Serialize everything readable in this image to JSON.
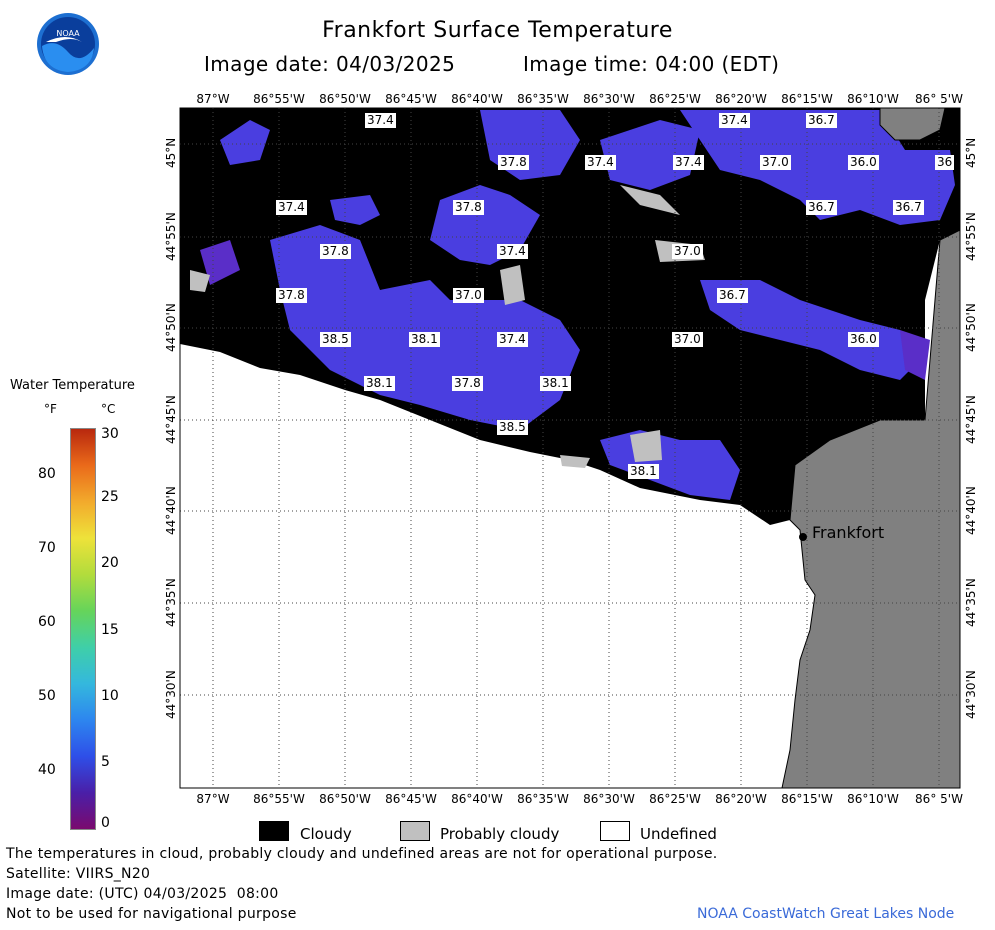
{
  "header": {
    "title": "Frankfort Surface Temperature",
    "image_date": "Image date: 04/03/2025",
    "image_time": "Image time: 04:00 (EDT)"
  },
  "logo": {
    "text": "NOAA"
  },
  "lon_labels": [
    "87°W",
    "86°55'W",
    "86°50'W",
    "86°45'W",
    "86°40'W",
    "86°35'W",
    "86°30'W",
    "86°25'W",
    "86°20'W",
    "86°15'W",
    "86°10'W",
    "86° 5'W"
  ],
  "lat_labels": [
    "45°N",
    "44°55'N",
    "44°50'N",
    "44°45'N",
    "44°40'N",
    "44°35'N",
    "44°30'N"
  ],
  "temps": [
    "37.4",
    "37.4",
    "36.7",
    "37.8",
    "37.4",
    "37.4",
    "37.0",
    "36.0",
    "36",
    "37.4",
    "37.8",
    "36.7",
    "36.7",
    "37.8",
    "37.4",
    "37.0",
    "37.8",
    "37.0",
    "36.7",
    "38.5",
    "38.1",
    "37.4",
    "37.0",
    "36.0",
    "38.1",
    "37.8",
    "38.1",
    "38.5",
    "38.1"
  ],
  "city": "Frankfort",
  "colorbar": {
    "title": "Water Temperature",
    "unit_f": "°F",
    "unit_c": "°C",
    "f_ticks": [
      "80",
      "70",
      "60",
      "50",
      "40"
    ],
    "c_ticks": [
      "30",
      "25",
      "20",
      "15",
      "10",
      "5",
      "0"
    ],
    "colors": [
      "#7a0a6e",
      "#4a1fa8",
      "#2e4fe8",
      "#2d86ef",
      "#34b8dd",
      "#3fcfa8",
      "#66d45a",
      "#b2dc3c",
      "#eee23a",
      "#f2aa2c",
      "#ea6a1a",
      "#b8280e"
    ]
  },
  "legend": {
    "cloudy": "Cloudy",
    "probably_cloudy": "Probably cloudy",
    "undefined": "Undefined"
  },
  "footer": {
    "note": "The temperatures in cloud, probably cloudy and undefined areas are not for operational purpose.",
    "satellite": "Satellite: VIIRS_N20",
    "utc_date": "Image date: (UTC) 04/03/2025  08:00",
    "nav": "Not to be used for navigational purpose",
    "credit": "NOAA CoastWatch Great Lakes Node"
  },
  "colors": {
    "water": "#4a3ee0",
    "water_alt": "#5a2ec8",
    "cloud": "#000000",
    "probably_cloudy": "#c0c0c0",
    "land": "#808080",
    "undefined": "#ffffff",
    "credit": "#3a6ad8"
  }
}
